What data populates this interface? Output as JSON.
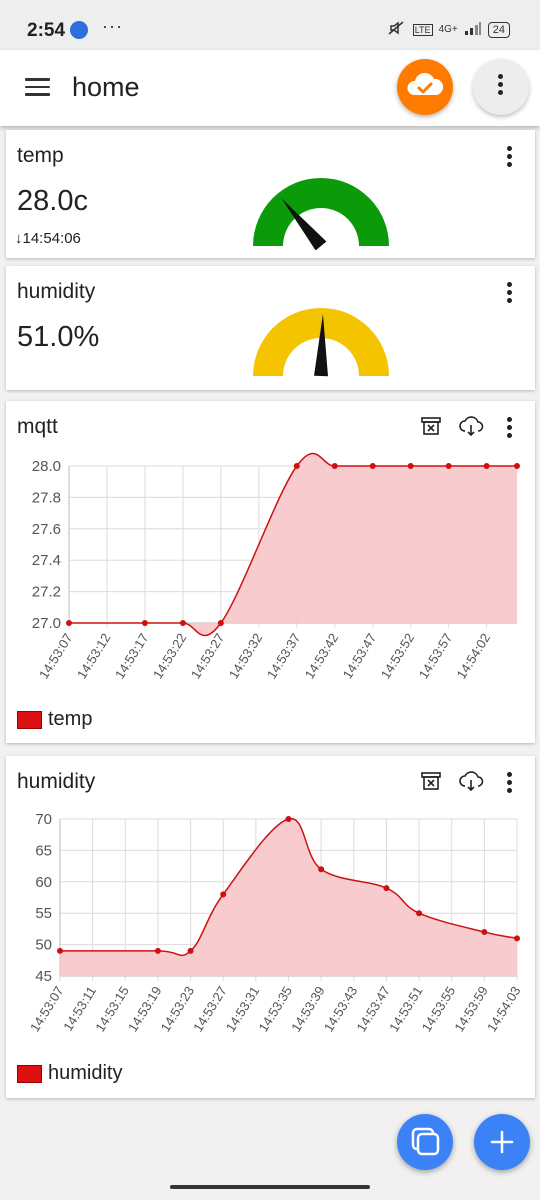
{
  "status": {
    "time": "2:54",
    "dots": "···",
    "network": "4G+",
    "lte": "LTE",
    "battery": "24"
  },
  "appbar": {
    "title": "home",
    "cloud_icon": "cloud-check-icon",
    "more_icon": "more-vertical-icon"
  },
  "cards": {
    "temp": {
      "title": "temp",
      "value": "28.0c",
      "timestamp": "14:54:06",
      "gauge_color": "#0a9a0a",
      "gauge_fraction": 0.28
    },
    "humidity": {
      "title": "humidity",
      "value": "51.0%",
      "gauge_color": "#f5c400",
      "gauge_fraction": 0.51
    }
  },
  "charts": {
    "mqtt": {
      "title": "mqtt",
      "legend": "temp",
      "chart_data": {
        "type": "area",
        "series": [
          {
            "name": "temp",
            "color": "#cc1111",
            "fill": "#f7c6c9"
          }
        ],
        "x": [
          "14:53:07",
          "14:53:17",
          "14:53:22",
          "14:53:27",
          "14:53:37",
          "14:53:42",
          "14:53:47",
          "14:53:52",
          "14:53:57",
          "14:54:02",
          "14:54:06"
        ],
        "y": [
          27.0,
          27.0,
          27.0,
          27.0,
          28.0,
          28.0,
          28.0,
          28.0,
          28.0,
          28.0,
          28.0
        ],
        "x_tick_labels": [
          "14:53:07",
          "14:53:12",
          "14:53:17",
          "14:53:22",
          "14:53:27",
          "14:53:32",
          "14:53:37",
          "14:53:42",
          "14:53:47",
          "14:53:52",
          "14:53:57",
          "14:54:02"
        ],
        "y_ticks": [
          "28.0",
          "27.8",
          "27.6",
          "27.4",
          "27.2",
          "27.0"
        ],
        "ylim": [
          27.0,
          28.0
        ],
        "grid": true,
        "legend_position": "bottom-left"
      }
    },
    "humidity": {
      "title": "humidity",
      "legend": "humidity",
      "chart_data": {
        "type": "area",
        "series": [
          {
            "name": "humidity",
            "color": "#cc1111",
            "fill": "#f7c6c9"
          }
        ],
        "x": [
          "14:53:07",
          "14:53:19",
          "14:53:23",
          "14:53:27",
          "14:53:35",
          "14:53:39",
          "14:53:47",
          "14:53:51",
          "14:53:59",
          "14:54:03"
        ],
        "y": [
          49,
          49,
          49,
          58,
          70,
          62,
          59,
          55,
          52,
          51
        ],
        "x_tick_labels": [
          "14:53:07",
          "14:53:11",
          "14:53:15",
          "14:53:19",
          "14:53:23",
          "14:53:27",
          "14:53:31",
          "14:53:35",
          "14:53:39",
          "14:53:43",
          "14:53:47",
          "14:53:51",
          "14:53:55",
          "14:53:59",
          "14:54:03"
        ],
        "y_ticks": [
          "70",
          "65",
          "60",
          "55",
          "50",
          "45"
        ],
        "ylim": [
          45,
          70
        ],
        "grid": true,
        "legend_position": "bottom-left"
      }
    }
  }
}
